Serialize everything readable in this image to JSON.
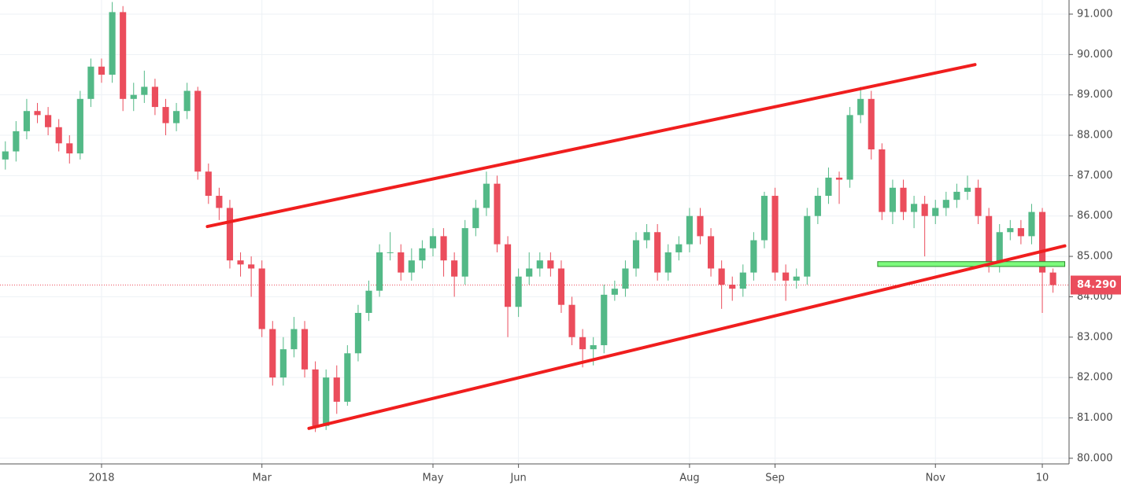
{
  "chart_data": {
    "type": "candlestick",
    "categories": [
      null,
      null,
      null,
      null,
      null,
      null,
      null,
      null,
      null,
      "2018",
      null,
      null,
      null,
      null,
      null,
      null,
      null,
      null,
      null,
      null,
      null,
      null,
      null,
      null,
      "Mar",
      null,
      null,
      null,
      null,
      null,
      null,
      null,
      null,
      null,
      null,
      null,
      null,
      null,
      null,
      null,
      "May",
      null,
      null,
      null,
      null,
      null,
      null,
      null,
      "Jun",
      null,
      null,
      null,
      null,
      null,
      null,
      null,
      null,
      null,
      null,
      null,
      null,
      null,
      null,
      null,
      "Aug",
      null,
      null,
      null,
      null,
      null,
      null,
      null,
      "Sep",
      null,
      null,
      null,
      null,
      null,
      null,
      null,
      null,
      null,
      null,
      null,
      null,
      null,
      null,
      "Nov",
      null,
      null,
      null,
      null,
      null,
      null,
      null,
      null,
      null,
      "10",
      null
    ],
    "open": [
      87.4,
      87.6,
      88.1,
      88.6,
      88.5,
      88.2,
      87.8,
      87.55,
      88.9,
      89.7,
      89.5,
      91.05,
      88.9,
      89.0,
      89.2,
      88.7,
      88.3,
      88.6,
      89.1,
      87.1,
      86.5,
      86.2,
      84.9,
      84.8,
      84.7,
      83.2,
      82.0,
      82.7,
      83.2,
      82.2,
      80.8,
      82.0,
      81.4,
      82.6,
      83.6,
      84.15,
      85.1,
      85.1,
      84.6,
      84.9,
      85.2,
      85.5,
      84.9,
      84.5,
      85.7,
      86.2,
      86.8,
      85.3,
      83.75,
      84.5,
      84.7,
      84.9,
      84.7,
      83.8,
      83.0,
      82.7,
      82.8,
      84.05,
      84.2,
      84.7,
      85.4,
      85.6,
      84.6,
      85.1,
      85.3,
      86.0,
      85.5,
      84.7,
      84.3,
      84.2,
      84.6,
      85.4,
      86.5,
      84.6,
      84.4,
      84.5,
      86.0,
      86.5,
      86.95,
      86.9,
      88.5,
      88.9,
      87.65,
      86.1,
      86.7,
      86.1,
      86.3,
      86.0,
      86.2,
      86.4,
      86.6,
      86.7,
      86.0,
      84.8,
      85.6,
      85.7,
      85.5,
      86.1,
      84.6
    ],
    "high": [
      87.85,
      88.35,
      88.9,
      88.8,
      88.7,
      88.4,
      88.0,
      89.1,
      89.9,
      89.9,
      91.3,
      91.2,
      89.3,
      89.6,
      89.4,
      88.9,
      88.8,
      89.3,
      89.2,
      87.3,
      86.7,
      86.4,
      85.1,
      85.0,
      84.9,
      83.4,
      83.0,
      83.5,
      83.4,
      82.4,
      82.2,
      82.3,
      82.8,
      83.8,
      84.4,
      85.3,
      85.6,
      85.3,
      85.2,
      85.4,
      85.7,
      85.7,
      85.1,
      85.9,
      86.4,
      87.1,
      87.0,
      85.5,
      84.7,
      85.1,
      85.1,
      85.1,
      84.9,
      84.0,
      83.2,
      83.0,
      84.3,
      84.4,
      84.9,
      85.6,
      85.8,
      85.8,
      85.3,
      85.5,
      86.2,
      86.2,
      85.7,
      84.9,
      84.5,
      84.8,
      85.6,
      86.6,
      86.7,
      84.8,
      84.7,
      86.2,
      86.7,
      87.2,
      87.1,
      88.7,
      89.2,
      89.1,
      87.8,
      86.9,
      86.9,
      86.5,
      86.5,
      86.4,
      86.6,
      86.8,
      87.0,
      86.9,
      86.2,
      85.8,
      85.9,
      85.9,
      86.3,
      86.2,
      84.7
    ],
    "low": [
      87.15,
      87.35,
      87.9,
      88.3,
      88.0,
      87.6,
      87.3,
      87.4,
      88.7,
      89.3,
      89.3,
      88.6,
      88.6,
      88.8,
      88.5,
      88.0,
      88.1,
      88.4,
      86.9,
      86.3,
      85.9,
      84.7,
      84.5,
      84.0,
      83.0,
      81.8,
      81.8,
      82.5,
      82.0,
      80.65,
      80.7,
      81.1,
      81.3,
      82.4,
      83.4,
      84.0,
      84.9,
      84.4,
      84.4,
      84.7,
      85.0,
      84.5,
      84.0,
      84.3,
      85.5,
      86.0,
      85.1,
      83.0,
      83.5,
      84.3,
      84.5,
      84.5,
      83.6,
      82.8,
      82.25,
      82.3,
      82.6,
      83.9,
      84.0,
      84.5,
      85.2,
      84.4,
      84.4,
      84.9,
      85.1,
      85.3,
      84.5,
      83.7,
      83.9,
      84.0,
      84.4,
      85.2,
      84.4,
      83.9,
      84.2,
      84.3,
      85.8,
      86.3,
      86.3,
      86.7,
      88.3,
      87.4,
      85.9,
      85.8,
      85.9,
      85.7,
      85.0,
      85.8,
      86.0,
      86.2,
      86.4,
      85.8,
      84.6,
      84.6,
      85.4,
      85.3,
      85.3,
      83.6,
      84.1
    ],
    "close": [
      87.6,
      88.1,
      88.6,
      88.5,
      88.2,
      87.8,
      87.55,
      88.9,
      89.7,
      89.5,
      91.05,
      88.9,
      89.0,
      89.2,
      88.7,
      88.3,
      88.6,
      89.1,
      87.1,
      86.5,
      86.2,
      84.9,
      84.8,
      84.7,
      83.2,
      82.0,
      82.7,
      83.2,
      82.2,
      80.8,
      82.0,
      81.4,
      82.6,
      83.6,
      84.15,
      85.1,
      85.1,
      84.6,
      84.9,
      85.2,
      85.5,
      84.9,
      84.5,
      85.7,
      86.2,
      86.8,
      85.3,
      83.75,
      84.5,
      84.7,
      84.9,
      84.7,
      83.8,
      83.0,
      82.7,
      82.8,
      84.05,
      84.2,
      84.7,
      85.4,
      85.6,
      84.6,
      85.1,
      85.3,
      86.0,
      85.5,
      84.7,
      84.3,
      84.2,
      84.6,
      85.4,
      86.5,
      84.6,
      84.4,
      84.5,
      86.0,
      86.5,
      86.95,
      86.9,
      88.5,
      88.9,
      87.65,
      86.1,
      86.7,
      86.1,
      86.3,
      86.0,
      86.2,
      86.4,
      86.6,
      86.7,
      86.0,
      84.8,
      85.6,
      85.7,
      85.5,
      86.1,
      84.6,
      84.29
    ],
    "up_color": "#53b987",
    "down_color": "#eb4d5c",
    "ylim": [
      79.86,
      91.35
    ],
    "yticks": [
      {
        "value": 80,
        "label": "80.000"
      },
      {
        "value": 81,
        "label": "81.000"
      },
      {
        "value": 82,
        "label": "82.000"
      },
      {
        "value": 83,
        "label": "83.000"
      },
      {
        "value": 84,
        "label": "84.000"
      },
      {
        "value": 85,
        "label": "85.000"
      },
      {
        "value": 86,
        "label": "86.000"
      },
      {
        "value": 87,
        "label": "87.000"
      },
      {
        "value": 88,
        "label": "88.000"
      },
      {
        "value": 89,
        "label": "89.000"
      },
      {
        "value": 90,
        "label": "90.000"
      },
      {
        "value": 91,
        "label": "91.000"
      }
    ],
    "grid": true,
    "last_price": {
      "value": 84.29,
      "label": "84.290"
    },
    "trendlines": [
      {
        "x": [
          18.9,
          90.7
        ],
        "y": [
          85.74,
          89.75
        ],
        "color": "#f01e1e"
      },
      {
        "x": [
          28.4,
          99.1
        ],
        "y": [
          80.74,
          85.26
        ],
        "color": "#f01e1e"
      }
    ],
    "zone": {
      "x": [
        81.6,
        99.1
      ],
      "y": [
        84.75,
        84.87
      ],
      "color": "#7dfa7d"
    }
  }
}
